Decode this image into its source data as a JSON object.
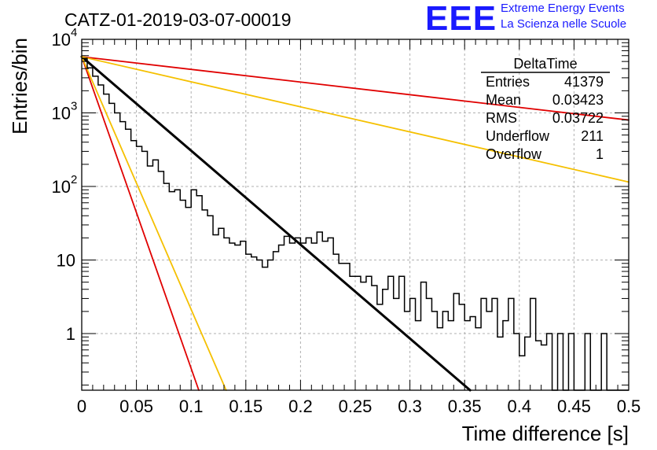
{
  "logo": {
    "letters": "EEE",
    "line1": "Extreme Energy Events",
    "line2": "La Scienza nelle Scuole",
    "color": "#1a1aff"
  },
  "chart_data": {
    "type": "line",
    "title": "CATZ-01-2019-03-07-00019",
    "xlabel": "Time difference [s]",
    "ylabel": "Entries/bin",
    "xlim": [
      0,
      0.5
    ],
    "ylim": [
      0.17,
      10000
    ],
    "yscale": "log",
    "grid": true,
    "x_ticks": [
      {
        "value": 0,
        "label": "0"
      },
      {
        "value": 0.05,
        "label": "0.05"
      },
      {
        "value": 0.1,
        "label": "0.1"
      },
      {
        "value": 0.15,
        "label": "0.15"
      },
      {
        "value": 0.2,
        "label": "0.2"
      },
      {
        "value": 0.25,
        "label": "0.25"
      },
      {
        "value": 0.3,
        "label": "0.3"
      },
      {
        "value": 0.35,
        "label": "0.35"
      },
      {
        "value": 0.4,
        "label": "0.4"
      },
      {
        "value": 0.45,
        "label": "0.45"
      },
      {
        "value": 0.5,
        "label": "0.5"
      }
    ],
    "y_ticks": [
      {
        "value": 1,
        "label": "1",
        "exp": ""
      },
      {
        "value": 10,
        "label": "10",
        "exp": ""
      },
      {
        "value": 100,
        "label": "10",
        "exp": "2"
      },
      {
        "value": 1000,
        "label": "10",
        "exp": "3"
      },
      {
        "value": 10000,
        "label": "10",
        "exp": "4"
      }
    ],
    "stats_box": {
      "title": "DeltaTime",
      "rows": [
        {
          "label": "Entries",
          "value": "41379"
        },
        {
          "label": "Mean",
          "value": "0.03423"
        },
        {
          "label": "RMS",
          "value": "0.03722"
        },
        {
          "label": "Underflow",
          "value": "211"
        },
        {
          "label": "Overflow",
          "value": "1"
        }
      ]
    },
    "histogram": {
      "name": "DeltaTime",
      "color": "#000000",
      "bin_width": 0.005,
      "counts": [
        5500,
        4100,
        3150,
        2400,
        1800,
        1350,
        1000,
        760,
        600,
        420,
        350,
        300,
        190,
        230,
        160,
        110,
        85,
        90,
        65,
        52,
        90,
        75,
        48,
        40,
        22,
        27,
        20,
        17,
        16,
        18,
        12,
        11,
        10,
        8,
        10,
        13,
        16,
        21,
        17,
        20,
        17,
        20,
        17,
        24,
        18,
        20,
        12,
        9,
        9,
        6,
        6,
        5,
        6,
        4.5,
        2.5,
        4,
        6,
        3,
        6,
        2,
        3,
        1.5,
        5,
        3,
        2,
        1.2,
        2,
        1.5,
        3.5,
        2.5,
        1.5,
        1.7,
        1.2,
        3,
        2,
        3,
        0.9,
        1.5,
        3,
        1,
        0.5,
        0.9,
        3,
        0.8,
        0.7,
        1,
        0,
        1,
        0,
        1,
        0,
        0,
        1,
        0,
        0,
        1,
        0,
        0,
        0,
        0
      ]
    },
    "lines": [
      {
        "name": "fit",
        "color": "#000000",
        "width": 3,
        "x0": 0,
        "y0": 5800,
        "x1": 0.355,
        "y1": 0.17
      },
      {
        "name": "red-steep",
        "color": "#e00000",
        "width": 1.8,
        "x0": 0,
        "y0": 5800,
        "x1": 0.107,
        "y1": 0.17
      },
      {
        "name": "orange-steep",
        "color": "#f5c000",
        "width": 1.8,
        "x0": 0,
        "y0": 5800,
        "x1": 0.132,
        "y1": 0.17
      },
      {
        "name": "red-shallow",
        "color": "#e00000",
        "width": 1.8,
        "x0": 0,
        "y0": 5800,
        "x1": 0.5,
        "y1": 800
      },
      {
        "name": "orange-shallow",
        "color": "#f5c000",
        "width": 1.8,
        "x0": 0,
        "y0": 5800,
        "x1": 0.5,
        "y1": 115
      }
    ]
  }
}
